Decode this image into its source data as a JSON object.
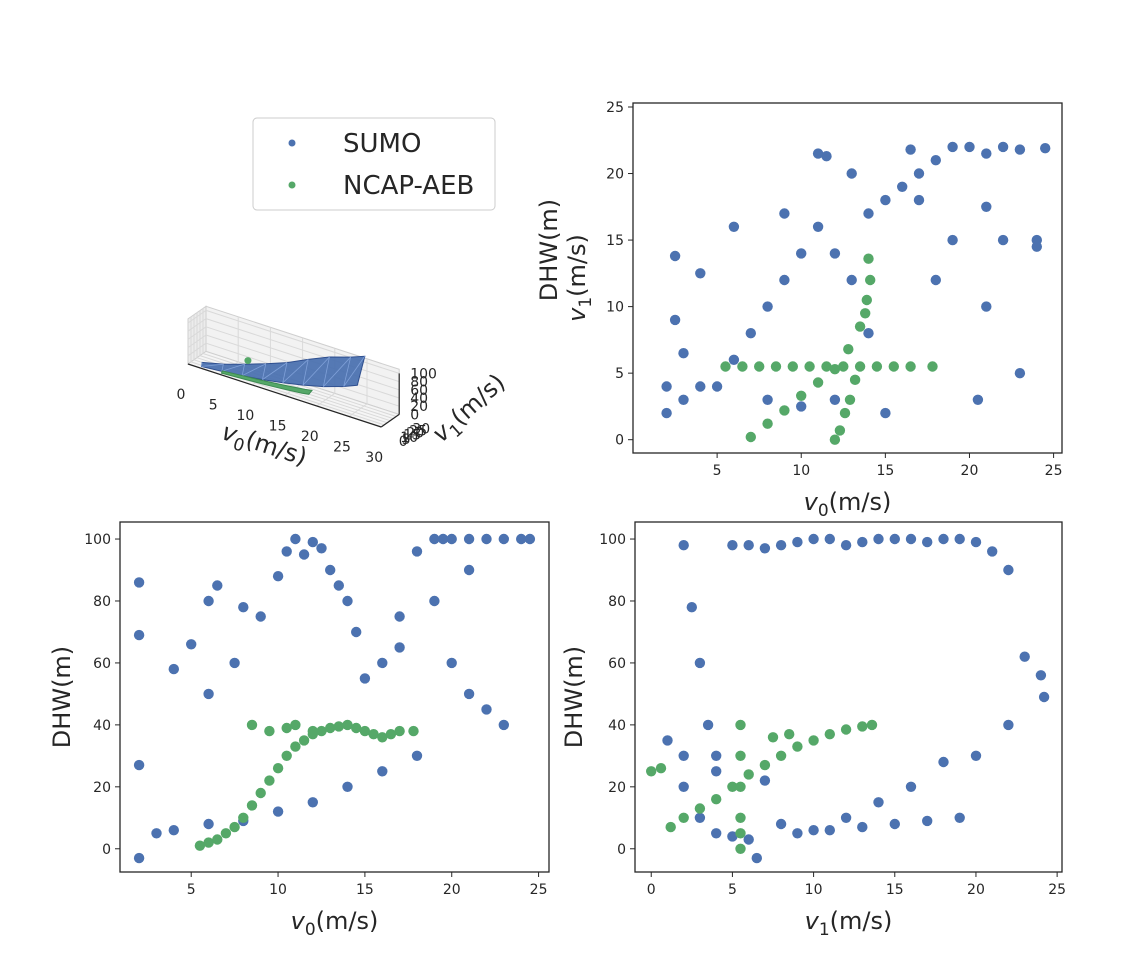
{
  "colors": {
    "sumo": "#4c72b0",
    "ncap": "#55a868",
    "axis": "#262626"
  },
  "legend": {
    "placement": "top-center",
    "entries": [
      "SUMO",
      "NCAP-AEB"
    ]
  },
  "chart_data": [
    {
      "type": "surface3d",
      "xlabel": "v0(m/s)",
      "ylabel": "v1(m/s)",
      "zlabel": "DHW(m)",
      "x_ticks": [
        "0",
        "5",
        "10",
        "15",
        "20",
        "25",
        "30"
      ],
      "y_ticks": [
        "0",
        "5",
        "10",
        "15",
        "20",
        "25",
        "30"
      ],
      "z_ticks": [
        "0",
        "20",
        "40",
        "60",
        "80",
        "100"
      ],
      "xlim": [
        0,
        30
      ],
      "ylim": [
        0,
        30
      ],
      "zlim": [
        0,
        100
      ],
      "series": [
        {
          "name": "SUMO",
          "kind": "surface",
          "color": "#4c72b0",
          "v0": [
            2,
            5,
            8,
            11,
            14,
            17,
            20,
            23,
            25
          ],
          "dhw_low": [
            3,
            5,
            8,
            12,
            18,
            26,
            36,
            50,
            62
          ],
          "dhw_high": [
            12,
            20,
            32,
            45,
            60,
            80,
            98,
            110,
            120
          ]
        },
        {
          "name": "NCAP-AEB",
          "kind": "band",
          "color": "#55a868",
          "v0": [
            5,
            8,
            11,
            14,
            17,
            18
          ],
          "dhw_low": [
            1,
            2,
            3,
            5,
            8,
            10
          ],
          "dhw_high": [
            20,
            30,
            38,
            40,
            40,
            40
          ]
        }
      ]
    },
    {
      "type": "scatter",
      "xlabel": "v0(m/s)",
      "ylabel": "v1(m/s)",
      "xlim": [
        0,
        25.5
      ],
      "ylim": [
        -1,
        25.3
      ],
      "x_ticks": [
        5,
        10,
        15,
        20,
        25
      ],
      "y_ticks": [
        0,
        5,
        10,
        15,
        20,
        25
      ],
      "series": [
        {
          "name": "SUMO",
          "color": "#4c72b0",
          "x": [
            2,
            2,
            3,
            2.5,
            4,
            3,
            5,
            6,
            7,
            8,
            9,
            10,
            11,
            12,
            13,
            14,
            15,
            16,
            17,
            18,
            19,
            20,
            21,
            22,
            23,
            24.5,
            11,
            11.5,
            16.5,
            22,
            24,
            21,
            23,
            20.5,
            15,
            12,
            14,
            19,
            18,
            2.5,
            6,
            9,
            13,
            17,
            21,
            24,
            8,
            10,
            4
          ],
          "y": [
            2,
            4,
            6.5,
            9,
            4,
            3,
            4,
            6,
            8,
            10,
            12,
            14,
            16,
            14,
            12,
            17,
            18,
            19,
            20,
            21,
            22,
            22,
            21.5,
            22,
            21.8,
            21.9,
            21.5,
            21.3,
            21.8,
            15,
            14.5,
            10,
            5,
            3,
            2,
            3,
            8,
            15,
            12,
            13.8,
            16,
            17,
            20,
            18,
            17.5,
            15,
            3,
            2.5,
            12.5
          ]
        },
        {
          "name": "NCAP-AEB",
          "color": "#55a868",
          "x": [
            5.5,
            6.5,
            7.5,
            8.5,
            9.5,
            10.5,
            11.5,
            12.5,
            13.5,
            14.5,
            15.5,
            16.5,
            17.8,
            7,
            8,
            9,
            10,
            11,
            12,
            12.8,
            13.5,
            13.9,
            14.1,
            14,
            13.8,
            12,
            12.3,
            12.6,
            12.9,
            13.2
          ],
          "y": [
            5.5,
            5.5,
            5.5,
            5.5,
            5.5,
            5.5,
            5.5,
            5.5,
            5.5,
            5.5,
            5.5,
            5.5,
            5.5,
            0.2,
            1.2,
            2.2,
            3.3,
            4.3,
            5.3,
            6.8,
            8.5,
            10.5,
            12,
            13.6,
            9.5,
            0,
            0.7,
            2,
            3,
            4.5
          ]
        }
      ]
    },
    {
      "type": "scatter",
      "xlabel": "v0(m/s)",
      "ylabel": "DHW(m)",
      "xlim": [
        0.9,
        25.6
      ],
      "ylim": [
        -7.5,
        105.5
      ],
      "x_ticks": [
        5,
        10,
        15,
        20,
        25
      ],
      "y_ticks": [
        0,
        20,
        40,
        60,
        80,
        100
      ],
      "series": [
        {
          "name": "SUMO",
          "color": "#4c72b0",
          "x": [
            2,
            2,
            2,
            2,
            4,
            5,
            6,
            6.5,
            6,
            7.5,
            8,
            9,
            10,
            10.5,
            11,
            11.5,
            12,
            12.5,
            13,
            13.5,
            14,
            14.5,
            15,
            16,
            17,
            18,
            19,
            19.5,
            20,
            21,
            22,
            23,
            24,
            24.5,
            19,
            20,
            21,
            22,
            23,
            18,
            16,
            14,
            12,
            10,
            8,
            6,
            4,
            3,
            17,
            21
          ],
          "y": [
            86,
            69,
            27,
            -3,
            58,
            66,
            80,
            85,
            50,
            60,
            78,
            75,
            88,
            96,
            100,
            95,
            99,
            97,
            90,
            85,
            80,
            70,
            55,
            60,
            75,
            96,
            100,
            100,
            100,
            100,
            100,
            100,
            100,
            100,
            80,
            60,
            50,
            45,
            40,
            30,
            25,
            20,
            15,
            12,
            9,
            8,
            6,
            5,
            65,
            90
          ]
        },
        {
          "name": "NCAP-AEB",
          "color": "#55a868",
          "x": [
            5.5,
            6,
            6.5,
            7,
            7.5,
            8,
            8.5,
            9,
            9.5,
            10,
            10.5,
            11,
            11.5,
            12,
            12.5,
            13,
            13.5,
            14,
            14.5,
            15,
            15.5,
            16,
            16.5,
            17,
            17.8,
            8.5,
            9.5,
            10.5,
            11,
            12
          ],
          "y": [
            1,
            2,
            3,
            5,
            7,
            10,
            14,
            18,
            22,
            26,
            30,
            33,
            35,
            37,
            38,
            39,
            39.5,
            40,
            39,
            38,
            37,
            36,
            37,
            38,
            38,
            40,
            38,
            39,
            40,
            38
          ]
        }
      ]
    },
    {
      "type": "scatter",
      "xlabel": "v1(m/s)",
      "ylabel": "DHW(m)",
      "xlim": [
        -1,
        25.3
      ],
      "ylim": [
        -7.5,
        105.5
      ],
      "x_ticks": [
        0,
        5,
        10,
        15,
        20,
        25
      ],
      "y_ticks": [
        0,
        20,
        40,
        60,
        80,
        100
      ],
      "series": [
        {
          "name": "SUMO",
          "color": "#4c72b0",
          "x": [
            2,
            2.5,
            3,
            3.5,
            4,
            5,
            6,
            7,
            8,
            9,
            10,
            11,
            12,
            13,
            14,
            15,
            16,
            17,
            18,
            19,
            20,
            21,
            22,
            23,
            24,
            24.2,
            2,
            3,
            4,
            5,
            6,
            6.5,
            8,
            10,
            12,
            14,
            16,
            18,
            20,
            22,
            1,
            2,
            4,
            7,
            9,
            11,
            13,
            15,
            17,
            19
          ],
          "y": [
            98,
            78,
            60,
            40,
            30,
            98,
            98,
            97,
            98,
            99,
            100,
            100,
            98,
            99,
            100,
            100,
            100,
            99,
            100,
            100,
            99,
            96,
            90,
            62,
            56,
            49,
            20,
            10,
            5,
            4,
            3,
            -3,
            8,
            6,
            10,
            15,
            20,
            28,
            30,
            40,
            35,
            30,
            25,
            22,
            5,
            6,
            7,
            8,
            9,
            10
          ]
        },
        {
          "name": "NCAP-AEB",
          "color": "#55a868",
          "x": [
            0,
            0.6,
            1.2,
            2,
            3,
            4,
            5,
            5.5,
            5.5,
            5.5,
            5.5,
            5.5,
            5.5,
            6,
            7,
            8,
            9,
            10,
            11,
            12,
            13,
            13.6,
            7.5,
            8.5
          ],
          "y": [
            25,
            26,
            7,
            10,
            13,
            16,
            20,
            0,
            10,
            20,
            30,
            40,
            5,
            24,
            27,
            30,
            33,
            35,
            37,
            38.5,
            39.5,
            40,
            36,
            37
          ]
        }
      ]
    }
  ]
}
